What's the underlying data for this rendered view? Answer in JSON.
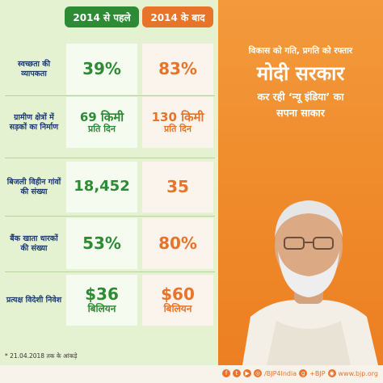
{
  "header": {
    "before_label": "2014 से पहले",
    "after_label": "2014 के बाद"
  },
  "rows": [
    {
      "label": "स्वच्छता की व्यापकता",
      "before": "39%",
      "after": "83%"
    },
    {
      "label": "ग्रामीण क्षेत्रों में सड़कों का निर्माण",
      "before_main": "69 किमी",
      "before_sub": "प्रति दिन",
      "after_main": "130 किमी",
      "after_sub": "प्रति दिन"
    },
    {
      "label": "बिजली विहीन गांवों की संख्या",
      "before": "18,452",
      "after": "35"
    },
    {
      "label": "बैंक खाता धारकों की संख्या",
      "before": "53%",
      "after": "80%"
    },
    {
      "label": "प्रत्यक्ष विदेशी निवेश",
      "before_main": "$36",
      "before_sub": "बिलियन",
      "after_main": "$60",
      "after_sub": "बिलियन"
    }
  ],
  "slogan": {
    "line1": "विकास को गति, प्रगति को रफ्तार",
    "line2": "मोदी सरकार",
    "line3": "कर रही ‘न्यू इंडिया’ का",
    "line4": "सपना साकार"
  },
  "footnote": "* 21.04.2018 तक के आंकड़े",
  "social": {
    "handle": "/BJP4India",
    "gplus": "+BJP",
    "site": "www.bjp.org"
  },
  "colors": {
    "green": "#2e8b35",
    "saffron": "#e8742a",
    "navy": "#1d3d6b"
  }
}
